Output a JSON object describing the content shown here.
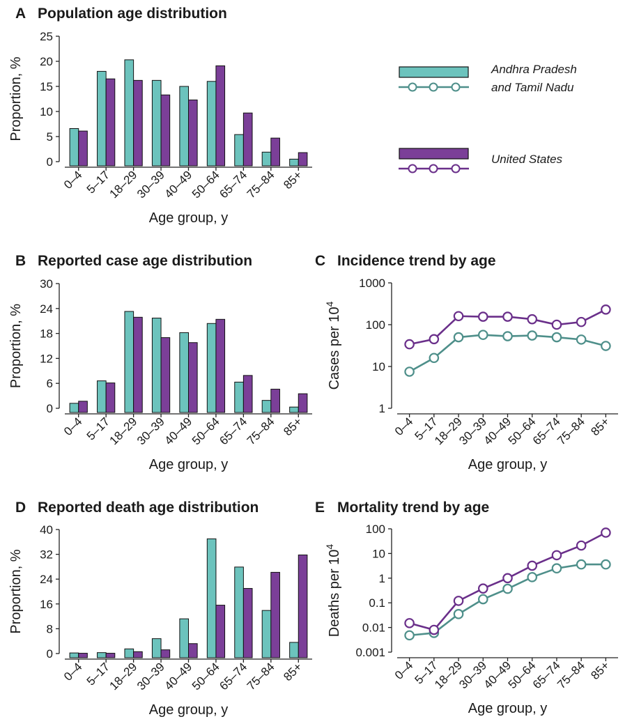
{
  "colors": {
    "ap": "#6cc3bd",
    "us": "#7b3f98",
    "ap_line": "#4e8f8a",
    "us_line": "#6a2f8a",
    "axis": "#222222"
  },
  "legend": {
    "ap_line1": "Andhra Pradesh",
    "ap_line2": "and Tamil Nadu",
    "us": "United States"
  },
  "chart_data": [
    {
      "id": "A",
      "letter": "A",
      "title": "Population age distribution",
      "type": "bar",
      "xlabel": "Age group, y",
      "ylabel": "Proportion, %",
      "ylim": [
        0,
        25
      ],
      "yticks": [
        0,
        5,
        10,
        15,
        20,
        25
      ],
      "categories": [
        "0–4",
        "5–17",
        "18–29",
        "30–39",
        "40–49",
        "50–64",
        "65–74",
        "75–84",
        "85+"
      ],
      "series": [
        {
          "name": "Andhra Pradesh and Tamil Nadu",
          "values": [
            6.6,
            18.0,
            20.3,
            16.2,
            15.0,
            16.0,
            5.4,
            1.9,
            0.5
          ]
        },
        {
          "name": "United States",
          "values": [
            6.1,
            16.5,
            16.2,
            13.3,
            12.3,
            19.1,
            9.7,
            4.7,
            1.8
          ]
        }
      ]
    },
    {
      "id": "B",
      "letter": "B",
      "title": "Reported case age distribution",
      "type": "bar",
      "xlabel": "Age group, y",
      "ylabel": "Proportion, %",
      "ylim": [
        0,
        30
      ],
      "yticks": [
        0,
        6,
        12,
        18,
        24,
        30
      ],
      "categories": [
        "0–4",
        "5–17",
        "18–29",
        "30–39",
        "40–49",
        "50–64",
        "65–74",
        "75–84",
        "85+"
      ],
      "series": [
        {
          "name": "Andhra Pradesh and Tamil Nadu",
          "values": [
            1.2,
            6.6,
            23.3,
            21.7,
            18.2,
            20.4,
            6.3,
            1.9,
            0.3
          ]
        },
        {
          "name": "United States",
          "values": [
            1.7,
            6.1,
            21.9,
            17.0,
            15.8,
            21.4,
            7.9,
            4.6,
            3.5
          ]
        }
      ]
    },
    {
      "id": "C",
      "letter": "C",
      "title": "Incidence trend by age",
      "type": "line",
      "yscale": "log",
      "xlabel": "Age group, y",
      "ylabel_main": "Cases per 10",
      "ylabel_sup": "4",
      "ylim": [
        1,
        1000
      ],
      "yticks": [
        1,
        10,
        100,
        1000
      ],
      "yticklabels": [
        "1",
        "10",
        "100",
        "1000"
      ],
      "categories": [
        "0–4",
        "5–17",
        "18–29",
        "30–39",
        "40–49",
        "50–64",
        "65–74",
        "75–84",
        "85+"
      ],
      "series": [
        {
          "name": "Andhra Pradesh and Tamil Nadu",
          "values": [
            7.5,
            16,
            50,
            57,
            53,
            55,
            50,
            44,
            31
          ]
        },
        {
          "name": "United States",
          "values": [
            34,
            45,
            160,
            155,
            155,
            135,
            100,
            116,
            230
          ]
        }
      ]
    },
    {
      "id": "D",
      "letter": "D",
      "title": "Reported death age distribution",
      "type": "bar",
      "xlabel": "Age group, y",
      "ylabel": "Proportion, %",
      "ylim": [
        0,
        40
      ],
      "yticks": [
        0,
        8,
        16,
        24,
        32,
        40
      ],
      "categories": [
        "0–4",
        "5–17",
        "18–29",
        "30–39",
        "40–49",
        "50–64",
        "65–74",
        "75–84",
        "85+"
      ],
      "series": [
        {
          "name": "Andhra Pradesh and Tamil Nadu",
          "values": [
            0.2,
            0.3,
            1.5,
            4.8,
            11.2,
            37.0,
            27.9,
            13.9,
            3.6
          ]
        },
        {
          "name": "United States",
          "values": [
            0.1,
            0.1,
            0.6,
            1.2,
            3.2,
            15.6,
            21.0,
            26.2,
            31.8
          ]
        }
      ]
    },
    {
      "id": "E",
      "letter": "E",
      "title": "Mortality trend by age",
      "type": "line",
      "yscale": "log",
      "xlabel": "Age group, y",
      "ylabel_main": "Deaths per 10",
      "ylabel_sup": "4",
      "ylim": [
        0.001,
        100
      ],
      "yticks": [
        0.001,
        0.01,
        0.1,
        1,
        10,
        100
      ],
      "yticklabels": [
        "0.001",
        "0.01",
        "0.1",
        "1",
        "10",
        "100"
      ],
      "categories": [
        "0–4",
        "5–17",
        "18–29",
        "30–39",
        "40–49",
        "50–64",
        "65–74",
        "75–84",
        "85+"
      ],
      "series": [
        {
          "name": "Andhra Pradesh and Tamil Nadu",
          "values": [
            0.0048,
            0.006,
            0.035,
            0.14,
            0.37,
            1.1,
            2.5,
            3.6,
            3.6
          ]
        },
        {
          "name": "United States",
          "values": [
            0.015,
            0.008,
            0.12,
            0.38,
            1.0,
            3.2,
            8.5,
            21,
            70
          ]
        }
      ]
    }
  ]
}
